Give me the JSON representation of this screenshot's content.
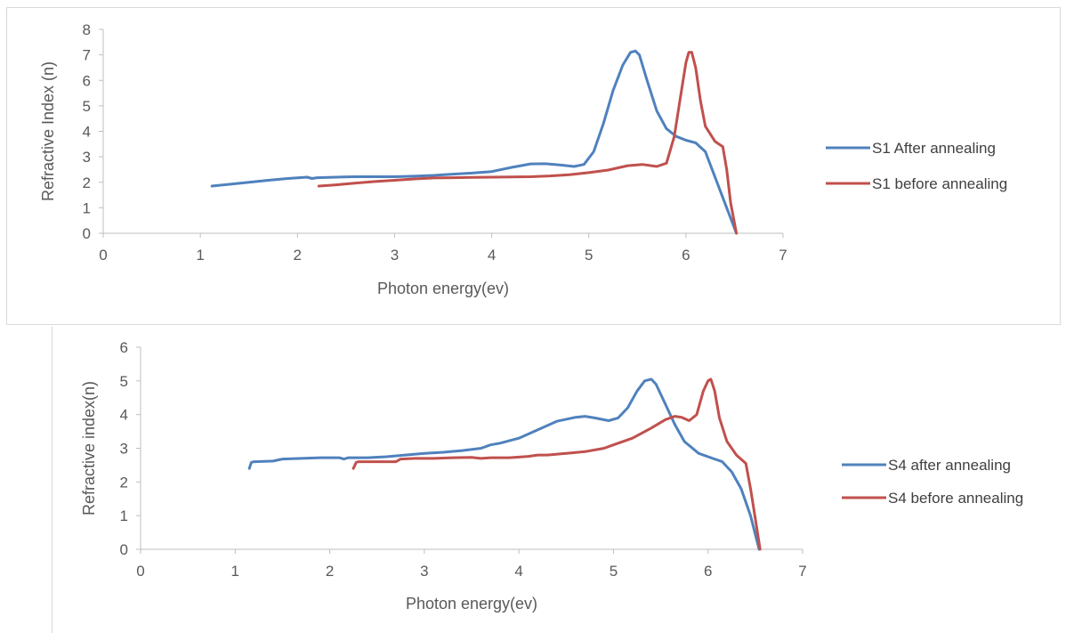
{
  "chart_data": [
    {
      "type": "line",
      "xlabel": "Photon energy(ev)",
      "ylabel": "Refractive Index (n)",
      "xlim": [
        0,
        7
      ],
      "ylim": [
        0,
        8
      ],
      "xticks": [
        0,
        1,
        2,
        3,
        4,
        5,
        6,
        7
      ],
      "yticks": [
        0,
        1,
        2,
        3,
        4,
        5,
        6,
        7,
        8
      ],
      "grid": false,
      "legend_position": "right",
      "series": [
        {
          "name": "S1 After annealing",
          "color": "#4f81bd",
          "x": [
            1.12,
            1.3,
            1.5,
            1.7,
            1.9,
            2.1,
            2.15,
            2.2,
            2.4,
            2.6,
            2.8,
            3.0,
            3.2,
            3.4,
            3.6,
            3.8,
            4.0,
            4.2,
            4.4,
            4.55,
            4.7,
            4.85,
            4.95,
            5.05,
            5.15,
            5.25,
            5.35,
            5.43,
            5.48,
            5.52,
            5.6,
            5.7,
            5.8,
            5.9,
            6.0,
            6.1,
            6.2,
            6.3,
            6.4,
            6.52
          ],
          "y": [
            1.85,
            1.92,
            2.0,
            2.08,
            2.15,
            2.2,
            2.15,
            2.18,
            2.2,
            2.22,
            2.22,
            2.22,
            2.24,
            2.27,
            2.32,
            2.36,
            2.42,
            2.58,
            2.72,
            2.73,
            2.68,
            2.62,
            2.7,
            3.2,
            4.3,
            5.6,
            6.6,
            7.1,
            7.15,
            7.0,
            6.0,
            4.8,
            4.1,
            3.8,
            3.65,
            3.55,
            3.2,
            2.2,
            1.2,
            0.0
          ]
        },
        {
          "name": "S1 before annealing",
          "color": "#c0504d",
          "x": [
            2.22,
            2.4,
            2.6,
            2.8,
            3.0,
            3.2,
            3.4,
            3.6,
            3.8,
            4.0,
            4.2,
            4.4,
            4.6,
            4.8,
            5.0,
            5.2,
            5.4,
            5.55,
            5.7,
            5.8,
            5.88,
            5.95,
            6.0,
            6.03,
            6.06,
            6.1,
            6.15,
            6.2,
            6.3,
            6.38,
            6.42,
            6.46,
            6.52
          ],
          "y": [
            1.85,
            1.9,
            1.97,
            2.03,
            2.08,
            2.13,
            2.17,
            2.18,
            2.19,
            2.2,
            2.21,
            2.22,
            2.25,
            2.3,
            2.38,
            2.48,
            2.65,
            2.7,
            2.62,
            2.75,
            3.8,
            5.5,
            6.7,
            7.1,
            7.1,
            6.5,
            5.2,
            4.2,
            3.6,
            3.4,
            2.5,
            1.2,
            0.0
          ]
        }
      ]
    },
    {
      "type": "line",
      "xlabel": "Photon energy(ev)",
      "ylabel": "Refractive index(n)",
      "xlim": [
        0,
        7
      ],
      "ylim": [
        0,
        6
      ],
      "xticks": [
        0,
        1,
        2,
        3,
        4,
        5,
        6,
        7
      ],
      "yticks": [
        0,
        1,
        2,
        3,
        4,
        5,
        6
      ],
      "grid": false,
      "legend_position": "right",
      "series": [
        {
          "name": "S4 after annealing",
          "color": "#4f81bd",
          "x": [
            1.15,
            1.17,
            1.2,
            1.4,
            1.5,
            1.7,
            1.9,
            2.1,
            2.15,
            2.2,
            2.4,
            2.6,
            2.8,
            3.0,
            3.2,
            3.4,
            3.6,
            3.7,
            3.8,
            4.0,
            4.2,
            4.4,
            4.6,
            4.7,
            4.8,
            4.95,
            5.05,
            5.15,
            5.25,
            5.33,
            5.4,
            5.45,
            5.55,
            5.65,
            5.75,
            5.9,
            6.05,
            6.15,
            6.25,
            6.35,
            6.45,
            6.54
          ],
          "y": [
            2.4,
            2.58,
            2.6,
            2.62,
            2.68,
            2.7,
            2.72,
            2.72,
            2.68,
            2.72,
            2.72,
            2.75,
            2.8,
            2.85,
            2.88,
            2.93,
            3.0,
            3.1,
            3.15,
            3.3,
            3.55,
            3.8,
            3.92,
            3.95,
            3.9,
            3.82,
            3.9,
            4.2,
            4.7,
            5.0,
            5.05,
            4.9,
            4.3,
            3.7,
            3.2,
            2.85,
            2.7,
            2.6,
            2.3,
            1.8,
            1.0,
            0.0
          ]
        },
        {
          "name": "S4 before annealing",
          "color": "#c0504d",
          "x": [
            2.25,
            2.28,
            2.3,
            2.5,
            2.7,
            2.75,
            2.9,
            3.1,
            3.3,
            3.5,
            3.6,
            3.7,
            3.9,
            4.1,
            4.2,
            4.3,
            4.5,
            4.7,
            4.9,
            5.0,
            5.2,
            5.4,
            5.55,
            5.65,
            5.72,
            5.8,
            5.88,
            5.95,
            6.0,
            6.03,
            6.07,
            6.12,
            6.2,
            6.3,
            6.4,
            6.45,
            6.5,
            6.55
          ],
          "y": [
            2.4,
            2.58,
            2.6,
            2.6,
            2.6,
            2.68,
            2.7,
            2.7,
            2.72,
            2.73,
            2.7,
            2.72,
            2.72,
            2.76,
            2.8,
            2.8,
            2.85,
            2.9,
            3.0,
            3.1,
            3.3,
            3.6,
            3.85,
            3.95,
            3.92,
            3.82,
            4.0,
            4.7,
            5.0,
            5.05,
            4.7,
            3.9,
            3.2,
            2.8,
            2.55,
            1.8,
            0.9,
            0.0
          ]
        }
      ]
    }
  ]
}
